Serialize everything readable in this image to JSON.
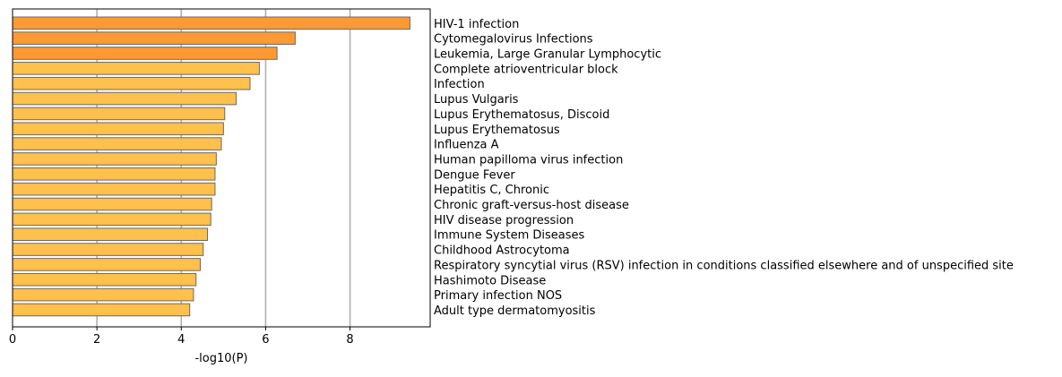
{
  "chart_data": {
    "type": "bar",
    "orientation": "horizontal",
    "xlabel": "-log10(P)",
    "ylabel": "",
    "title": "",
    "xlim": [
      0,
      9.9
    ],
    "xticks": [
      0,
      2,
      4,
      6,
      8
    ],
    "xtick_labels": [
      "0",
      "2",
      "4",
      "6",
      "8"
    ],
    "grid": "vertical lines at x ticks",
    "label_position": "right of plot",
    "colors": {
      "dark": "#ff9933",
      "light": "#ffc04c",
      "edge": "#696969",
      "grid": "#b0b0b0"
    },
    "categories": [
      "HIV-1 infection",
      "Cytomegalovirus Infections",
      "Leukemia, Large Granular Lymphocytic",
      "Complete atrioventricular block",
      "Infection",
      "Lupus Vulgaris",
      "Lupus Erythematosus, Discoid",
      "Lupus Erythematosus",
      "Influenza A",
      "Human papilloma virus infection",
      "Dengue Fever",
      "Hepatitis C, Chronic",
      "Chronic graft-versus-host disease",
      "HIV disease progression",
      "Immune System Diseases",
      "Childhood Astrocytoma",
      "Respiratory syncytial virus (RSV) infection in conditions classified elsewhere and of unspecified site",
      "Hashimoto Disease",
      "Primary infection NOS",
      "Adult type dermatomyositis"
    ],
    "values": [
      9.42,
      6.7,
      6.27,
      5.85,
      5.63,
      5.3,
      5.03,
      5.0,
      4.95,
      4.83,
      4.8,
      4.8,
      4.72,
      4.7,
      4.62,
      4.52,
      4.45,
      4.35,
      4.29,
      4.2
    ],
    "bar_color_group": [
      "dark",
      "dark",
      "dark",
      "light",
      "light",
      "light",
      "light",
      "light",
      "light",
      "light",
      "light",
      "light",
      "light",
      "light",
      "light",
      "light",
      "light",
      "light",
      "light",
      "light"
    ]
  }
}
